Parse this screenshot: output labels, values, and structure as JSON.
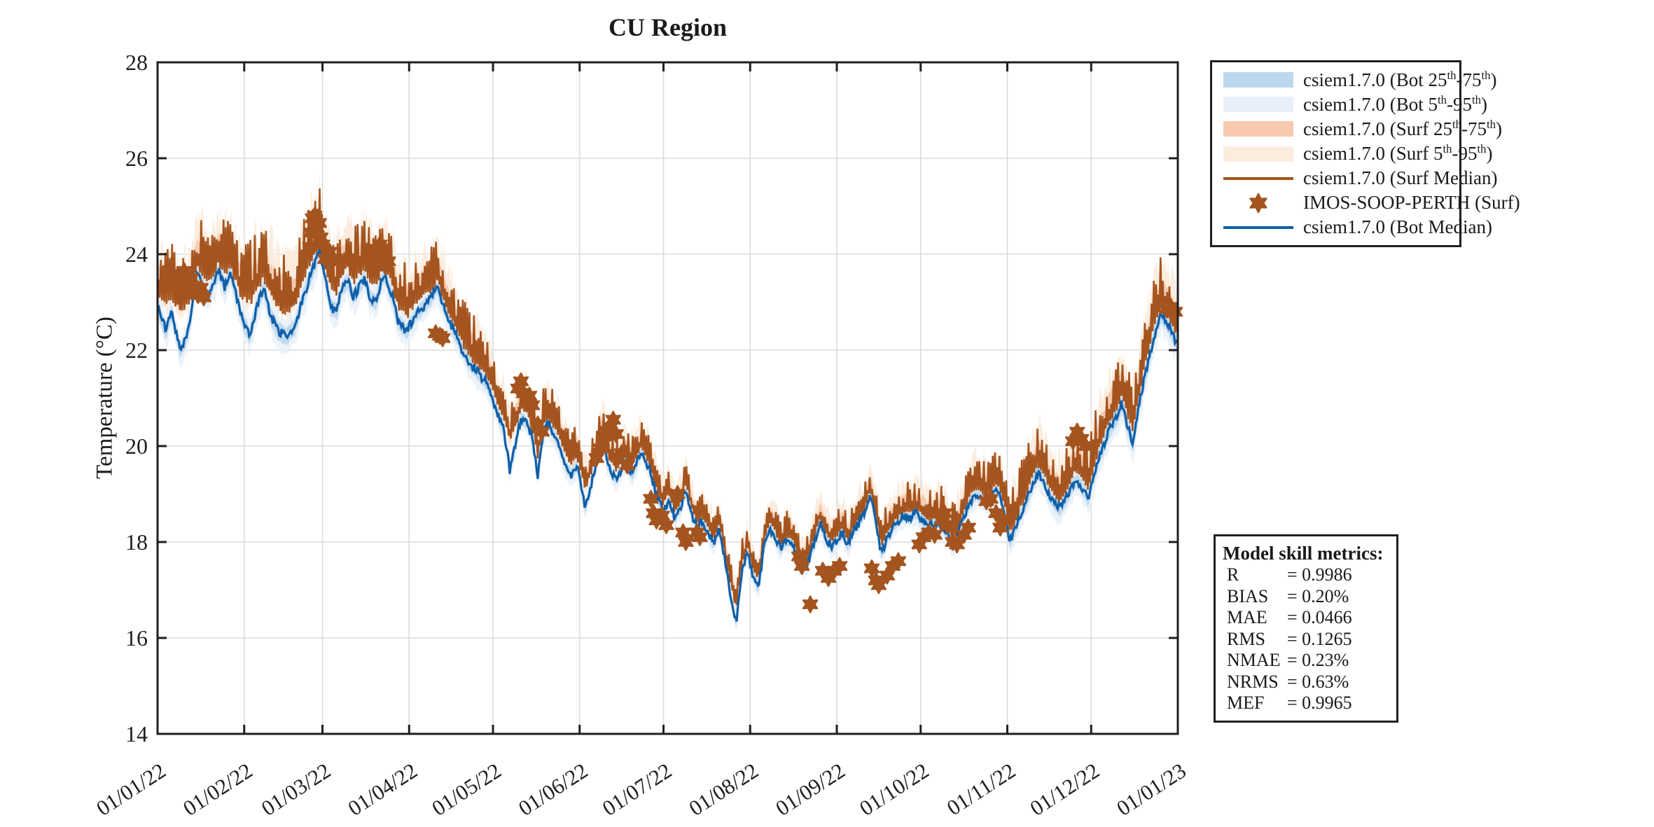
{
  "colors": {
    "bot_median": "#0F5FA9",
    "bot_band50": "#BCD8EC",
    "bot_band90": "#E7F0F8",
    "surf_median": "#A4541F",
    "surf_band50": "#F7C9AF",
    "surf_band90": "#FBECDD",
    "observation": "#A4541F",
    "grid": "#DBDBDB",
    "axis": "#1F1F1F"
  },
  "legend": {
    "items": [
      {
        "type": "band",
        "color_key": "bot_band50",
        "parts": [
          {
            "text": "csiem1.7.0 (Bot 25"
          },
          {
            "text": "th",
            "sup": true
          },
          {
            "text": "-75"
          },
          {
            "text": "th",
            "sup": true
          },
          {
            "text": ")"
          }
        ]
      },
      {
        "type": "band",
        "color_key": "bot_band90",
        "parts": [
          {
            "text": "csiem1.7.0 (Bot 5"
          },
          {
            "text": "th",
            "sup": true
          },
          {
            "text": "-95"
          },
          {
            "text": "th",
            "sup": true
          },
          {
            "text": ")"
          }
        ]
      },
      {
        "type": "band",
        "color_key": "surf_band50",
        "parts": [
          {
            "text": "csiem1.7.0 (Surf 25"
          },
          {
            "text": "th",
            "sup": true
          },
          {
            "text": "-75"
          },
          {
            "text": "th",
            "sup": true
          },
          {
            "text": ")"
          }
        ]
      },
      {
        "type": "band",
        "color_key": "surf_band90",
        "parts": [
          {
            "text": "csiem1.7.0 (Surf 5"
          },
          {
            "text": "th",
            "sup": true
          },
          {
            "text": "-95"
          },
          {
            "text": "th",
            "sup": true
          },
          {
            "text": ")"
          }
        ]
      },
      {
        "type": "line",
        "color_key": "surf_median",
        "parts": [
          {
            "text": "csiem1.7.0 (Surf Median)"
          }
        ]
      },
      {
        "type": "marker",
        "color_key": "observation",
        "parts": [
          {
            "text": "IMOS-SOOP-PERTH (Surf)"
          }
        ]
      },
      {
        "type": "line",
        "color_key": "bot_median",
        "parts": [
          {
            "text": "csiem1.7.0 (Bot Median)"
          }
        ]
      }
    ]
  },
  "metrics": {
    "title": "Model skill metrics:",
    "rows": [
      {
        "name": "R",
        "value": "0.9986"
      },
      {
        "name": "BIAS",
        "value": "0.20%"
      },
      {
        "name": "MAE",
        "value": "0.0466"
      },
      {
        "name": "RMS",
        "value": "0.1265"
      },
      {
        "name": "NMAE",
        "value": "0.23%"
      },
      {
        "name": "NRMS",
        "value": "0.63%"
      },
      {
        "name": "MEF",
        "value": "0.9965"
      }
    ]
  },
  "chart_data": {
    "type": "line",
    "title": "CU Region",
    "ylabel": "Temperature (°C)",
    "ylim": [
      14,
      28
    ],
    "yticks": [
      14,
      16,
      18,
      20,
      22,
      24,
      26,
      28
    ],
    "x_total_days": 365,
    "xtick_days": [
      0,
      31,
      59,
      90,
      120,
      151,
      181,
      212,
      243,
      273,
      304,
      334,
      365
    ],
    "xtick_labels": [
      "01/01/22",
      "01/02/22",
      "01/03/22",
      "01/04/22",
      "01/05/22",
      "01/06/22",
      "01/07/22",
      "01/08/22",
      "01/09/22",
      "01/10/22",
      "01/11/22",
      "01/12/22",
      "01/01/23"
    ],
    "grid": true,
    "legend_position": "outside-right",
    "month_boundaries": [
      0,
      31,
      59,
      90,
      120,
      151,
      181,
      212,
      243,
      273,
      304,
      334,
      365
    ],
    "bands": {
      "surf_spike_amp": [
        1.1,
        1.2,
        1.1,
        0.9,
        0.7,
        0.6,
        0.5,
        0.5,
        0.6,
        0.7,
        0.9,
        1.0
      ],
      "bot_band90_half": [
        0.45,
        0.5,
        0.45,
        0.4,
        0.35,
        0.3,
        0.3,
        0.3,
        0.3,
        0.35,
        0.4,
        0.5
      ],
      "surf_band90_up": [
        1.2,
        1.3,
        1.2,
        1.0,
        0.8,
        0.7,
        0.6,
        0.6,
        0.7,
        0.8,
        1.0,
        1.1
      ],
      "surf_band90_down": [
        0.4,
        0.45,
        0.4,
        0.35,
        0.3,
        0.3,
        0.25,
        0.25,
        0.3,
        0.3,
        0.35,
        0.4
      ]
    },
    "series_names": {
      "bot": "csiem1.7.0 (Bot Median)",
      "surf": "csiem1.7.0 (Surf Median)"
    },
    "points_format": [
      "day",
      "bot_median_C",
      "surf_median_C"
    ],
    "points": [
      [
        0,
        22.9,
        23.3
      ],
      [
        3,
        22.4,
        23.1
      ],
      [
        5,
        22.8,
        23.3
      ],
      [
        8,
        22.0,
        23.0
      ],
      [
        10,
        22.2,
        23.1
      ],
      [
        12,
        22.7,
        23.3
      ],
      [
        14,
        23.6,
        23.9
      ],
      [
        16,
        23.4,
        23.8
      ],
      [
        18,
        23.1,
        23.6
      ],
      [
        20,
        23.4,
        23.8
      ],
      [
        22,
        23.65,
        24.0
      ],
      [
        24,
        23.3,
        23.8
      ],
      [
        26,
        23.6,
        23.9
      ],
      [
        28,
        23.2,
        23.6
      ],
      [
        30,
        22.7,
        23.3
      ],
      [
        33,
        22.3,
        23.2
      ],
      [
        36,
        23.0,
        23.5
      ],
      [
        38,
        23.3,
        23.7
      ],
      [
        40,
        22.8,
        23.4
      ],
      [
        43,
        22.4,
        23.1
      ],
      [
        46,
        22.3,
        23.0
      ],
      [
        49,
        22.45,
        23.1
      ],
      [
        52,
        23.1,
        23.6
      ],
      [
        55,
        23.6,
        24.1
      ],
      [
        58,
        24.1,
        24.4
      ],
      [
        60,
        23.5,
        23.9
      ],
      [
        62,
        22.9,
        23.5
      ],
      [
        64,
        22.8,
        23.4
      ],
      [
        66,
        23.3,
        23.8
      ],
      [
        68,
        23.45,
        23.9
      ],
      [
        70,
        23.1,
        23.6
      ],
      [
        72,
        23.3,
        23.8
      ],
      [
        74,
        23.5,
        23.9
      ],
      [
        76,
        23.1,
        23.6
      ],
      [
        78,
        23.0,
        23.5
      ],
      [
        81,
        23.6,
        24.0
      ],
      [
        84,
        23.1,
        23.5
      ],
      [
        86,
        22.6,
        23.1
      ],
      [
        89,
        22.4,
        22.9
      ],
      [
        92,
        22.7,
        23.1
      ],
      [
        95,
        22.9,
        23.3
      ],
      [
        98,
        23.1,
        23.4
      ],
      [
        100,
        23.3,
        23.6
      ],
      [
        103,
        22.8,
        23.1
      ],
      [
        106,
        22.4,
        22.7
      ],
      [
        109,
        22.0,
        22.3
      ],
      [
        112,
        21.7,
        22.0
      ],
      [
        115,
        21.5,
        21.8
      ],
      [
        118,
        21.3,
        21.6
      ],
      [
        121,
        20.8,
        21.1
      ],
      [
        124,
        20.3,
        20.7
      ],
      [
        126,
        19.5,
        20.2
      ],
      [
        128,
        20.0,
        20.5
      ],
      [
        130,
        20.6,
        20.9
      ],
      [
        132,
        20.5,
        20.8
      ],
      [
        134,
        20.2,
        20.5
      ],
      [
        136,
        19.4,
        19.9
      ],
      [
        138,
        20.3,
        20.6
      ],
      [
        140,
        20.45,
        20.7
      ],
      [
        143,
        20.1,
        20.4
      ],
      [
        146,
        19.6,
        19.9
      ],
      [
        148,
        19.4,
        19.7
      ],
      [
        150,
        19.6,
        19.9
      ],
      [
        153,
        18.7,
        19.2
      ],
      [
        156,
        19.4,
        19.7
      ],
      [
        159,
        20.2,
        20.4
      ],
      [
        161,
        19.6,
        19.9
      ],
      [
        164,
        19.3,
        19.6
      ],
      [
        167,
        19.65,
        19.9
      ],
      [
        170,
        19.4,
        19.7
      ],
      [
        173,
        19.9,
        20.1
      ],
      [
        176,
        19.5,
        19.7
      ],
      [
        179,
        18.9,
        19.1
      ],
      [
        181,
        18.65,
        18.9
      ],
      [
        183,
        18.85,
        19.1
      ],
      [
        185,
        18.5,
        18.7
      ],
      [
        187,
        18.7,
        18.9
      ],
      [
        189,
        19.1,
        19.3
      ],
      [
        191,
        18.6,
        18.8
      ],
      [
        193,
        18.3,
        18.5
      ],
      [
        195,
        18.45,
        18.6
      ],
      [
        197,
        18.2,
        18.4
      ],
      [
        199,
        17.95,
        18.1
      ],
      [
        201,
        18.3,
        18.5
      ],
      [
        203,
        17.6,
        17.8
      ],
      [
        205,
        16.9,
        17.2
      ],
      [
        207,
        16.3,
        16.7
      ],
      [
        209,
        17.4,
        17.6
      ],
      [
        211,
        17.8,
        18.0
      ],
      [
        213,
        17.3,
        17.5
      ],
      [
        215,
        17.05,
        17.3
      ],
      [
        217,
        17.9,
        18.1
      ],
      [
        219,
        18.3,
        18.5
      ],
      [
        221,
        18.1,
        18.3
      ],
      [
        223,
        17.85,
        18.0
      ],
      [
        225,
        18.05,
        18.2
      ],
      [
        227,
        18.0,
        18.2
      ],
      [
        229,
        17.6,
        17.8
      ],
      [
        231,
        17.45,
        17.6
      ],
      [
        233,
        17.6,
        17.8
      ],
      [
        235,
        18.0,
        18.2
      ],
      [
        237,
        18.4,
        18.6
      ],
      [
        239,
        18.1,
        18.3
      ],
      [
        241,
        17.9,
        18.1
      ],
      [
        243,
        18.05,
        18.2
      ],
      [
        245,
        18.2,
        18.4
      ],
      [
        247,
        17.9,
        18.1
      ],
      [
        249,
        18.25,
        18.4
      ],
      [
        251,
        18.4,
        18.6
      ],
      [
        253,
        18.65,
        18.8
      ],
      [
        255,
        19.0,
        19.2
      ],
      [
        257,
        18.4,
        18.6
      ],
      [
        259,
        17.75,
        18.0
      ],
      [
        261,
        18.1,
        18.3
      ],
      [
        263,
        18.3,
        18.5
      ],
      [
        265,
        18.45,
        18.6
      ],
      [
        267,
        18.55,
        18.75
      ],
      [
        269,
        18.5,
        18.7
      ],
      [
        271,
        18.6,
        18.8
      ],
      [
        273,
        18.5,
        18.7
      ],
      [
        275,
        18.4,
        18.6
      ],
      [
        277,
        18.35,
        18.55
      ],
      [
        279,
        18.45,
        18.65
      ],
      [
        281,
        18.3,
        18.5
      ],
      [
        283,
        18.1,
        18.3
      ],
      [
        285,
        17.95,
        18.2
      ],
      [
        287,
        18.3,
        18.5
      ],
      [
        289,
        18.6,
        18.85
      ],
      [
        291,
        18.85,
        19.1
      ],
      [
        293,
        19.0,
        19.25
      ],
      [
        295,
        18.9,
        19.15
      ],
      [
        297,
        18.85,
        19.1
      ],
      [
        299,
        19.0,
        19.25
      ],
      [
        301,
        19.05,
        19.3
      ],
      [
        303,
        18.6,
        18.9
      ],
      [
        305,
        18.0,
        18.3
      ],
      [
        307,
        18.3,
        18.6
      ],
      [
        309,
        18.6,
        18.9
      ],
      [
        311,
        18.85,
        19.15
      ],
      [
        313,
        19.2,
        19.5
      ],
      [
        315,
        19.45,
        19.75
      ],
      [
        317,
        19.3,
        19.6
      ],
      [
        319,
        18.95,
        19.25
      ],
      [
        321,
        18.8,
        19.1
      ],
      [
        323,
        18.7,
        19.0
      ],
      [
        325,
        18.9,
        19.2
      ],
      [
        327,
        19.15,
        19.5
      ],
      [
        329,
        19.3,
        19.65
      ],
      [
        331,
        19.1,
        19.45
      ],
      [
        333,
        18.9,
        19.25
      ],
      [
        335,
        19.4,
        19.75
      ],
      [
        337,
        19.8,
        20.15
      ],
      [
        339,
        20.1,
        20.45
      ],
      [
        341,
        20.4,
        20.75
      ],
      [
        343,
        20.6,
        20.95
      ],
      [
        345,
        20.9,
        21.25
      ],
      [
        347,
        20.4,
        20.8
      ],
      [
        349,
        20.05,
        20.45
      ],
      [
        351,
        20.8,
        21.2
      ],
      [
        353,
        21.4,
        21.8
      ],
      [
        355,
        21.9,
        22.3
      ],
      [
        357,
        22.4,
        22.8
      ],
      [
        359,
        22.75,
        23.1
      ],
      [
        361,
        22.6,
        22.95
      ],
      [
        363,
        22.35,
        22.7
      ],
      [
        365,
        22.1,
        22.5
      ]
    ],
    "observations": {
      "name": "IMOS-SOOP-PERTH (Surf)",
      "points_format": [
        "day",
        "temperature_C"
      ],
      "points": [
        [
          6.5,
          23.4
        ],
        [
          7.2,
          23.55
        ],
        [
          8,
          23.3
        ],
        [
          8.8,
          23.5
        ],
        [
          9.5,
          23.65
        ],
        [
          10.3,
          23.45
        ],
        [
          11,
          23.3
        ],
        [
          12,
          23.5
        ],
        [
          13,
          23.25
        ],
        [
          14.5,
          23.15
        ],
        [
          15.5,
          23.3
        ],
        [
          16.5,
          23.1
        ],
        [
          54.5,
          24.15
        ],
        [
          55,
          24.45
        ],
        [
          55.5,
          24.75
        ],
        [
          56.2,
          24.8
        ],
        [
          57,
          24.55
        ],
        [
          57.8,
          24.65
        ],
        [
          58.3,
          24.35
        ],
        [
          59,
          24.2
        ],
        [
          60,
          23.9
        ],
        [
          61.5,
          24.05
        ],
        [
          62.5,
          23.85
        ],
        [
          77.5,
          23.9
        ],
        [
          78.5,
          24.1
        ],
        [
          79.5,
          24.2
        ],
        [
          80.5,
          23.95
        ],
        [
          81.5,
          23.75
        ],
        [
          82.5,
          23.85
        ],
        [
          99.5,
          22.35
        ],
        [
          101,
          22.3
        ],
        [
          102,
          22.25
        ],
        [
          129,
          21.2
        ],
        [
          130,
          21.35
        ],
        [
          131,
          21.1
        ],
        [
          132,
          20.95
        ],
        [
          133,
          21.05
        ],
        [
          134,
          20.85
        ],
        [
          136,
          20.45
        ],
        [
          137.5,
          20.3
        ],
        [
          157,
          19.75
        ],
        [
          158.5,
          19.95
        ],
        [
          160,
          20.2
        ],
        [
          162,
          20.4
        ],
        [
          163,
          20.55
        ],
        [
          164,
          20.25
        ],
        [
          166,
          19.85
        ],
        [
          168,
          19.6
        ],
        [
          176.5,
          18.9
        ],
        [
          177.5,
          18.6
        ],
        [
          178.5,
          18.45
        ],
        [
          180.5,
          18.55
        ],
        [
          182,
          18.35
        ],
        [
          186,
          19.0
        ],
        [
          188,
          18.2
        ],
        [
          189,
          18.0
        ],
        [
          193,
          18.2
        ],
        [
          194,
          18.1
        ],
        [
          229.5,
          17.7
        ],
        [
          230.5,
          17.5
        ],
        [
          233.5,
          16.7
        ],
        [
          238,
          17.4
        ],
        [
          240,
          17.25
        ],
        [
          242,
          17.4
        ],
        [
          244,
          17.5
        ],
        [
          255.5,
          17.45
        ],
        [
          257,
          17.2
        ],
        [
          258,
          17.1
        ],
        [
          261,
          17.3
        ],
        [
          263,
          17.5
        ],
        [
          265,
          17.6
        ],
        [
          272.5,
          17.95
        ],
        [
          274,
          18.1
        ],
        [
          276,
          18.2
        ],
        [
          278,
          18.15
        ],
        [
          280.5,
          18.45
        ],
        [
          281.5,
          18.6
        ],
        [
          282.5,
          18.35
        ],
        [
          284.5,
          18.0
        ],
        [
          286,
          17.95
        ],
        [
          288.5,
          18.15
        ],
        [
          290,
          18.3
        ],
        [
          296.5,
          18.85
        ],
        [
          298,
          18.9
        ],
        [
          300,
          18.6
        ],
        [
          301.5,
          18.3
        ],
        [
          302.5,
          18.45
        ],
        [
          327.5,
          20.1
        ],
        [
          329,
          20.3
        ],
        [
          330.5,
          20.15
        ],
        [
          332,
          20.0
        ],
        [
          361,
          22.85
        ],
        [
          362.5,
          22.9
        ],
        [
          364,
          22.8
        ]
      ]
    }
  }
}
